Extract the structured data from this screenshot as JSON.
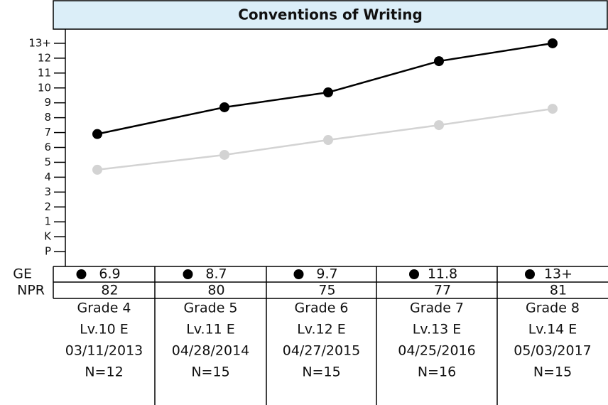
{
  "chart_data": {
    "type": "line",
    "title": "Conventions of Writing",
    "ylim": [
      -2,
      14
    ],
    "yticks": [
      {
        "value": -1,
        "label": "P"
      },
      {
        "value": 0,
        "label": "K"
      },
      1,
      2,
      3,
      4,
      5,
      6,
      7,
      8,
      9,
      10,
      11,
      12,
      {
        "value": 13,
        "label": "13+"
      }
    ],
    "categories": [
      "Grade 4",
      "Grade 5",
      "Grade 6",
      "Grade 7",
      "Grade 8"
    ],
    "series": [
      {
        "color": "#000000",
        "values": [
          6.9,
          8.7,
          9.7,
          11.8,
          13
        ],
        "value_labels": [
          "6.9",
          "8.7",
          "9.7",
          "11.8",
          "13+"
        ]
      },
      {
        "color": "#d3d3d3",
        "values": [
          4.5,
          5.5,
          6.5,
          7.5,
          8.6
        ]
      }
    ],
    "table": {
      "row_labels": [
        "GE",
        "NPR"
      ],
      "npr": [
        82,
        80,
        75,
        77,
        81
      ],
      "levels": [
        "Lv.10 E",
        "Lv.11 E",
        "Lv.12 E",
        "Lv.13 E",
        "Lv.14 E"
      ],
      "dates": [
        "03/11/2013",
        "04/28/2014",
        "04/27/2015",
        "04/25/2016",
        "05/03/2017"
      ],
      "n": [
        "N=12",
        "N=15",
        "N=15",
        "N=16",
        "N=15"
      ]
    }
  }
}
